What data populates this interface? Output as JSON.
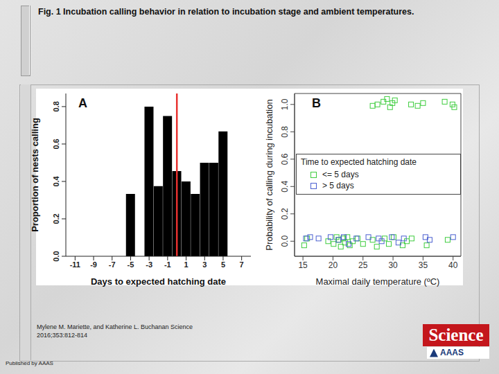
{
  "slide": {
    "title": "Fig. 1 Incubation calling behavior in relation to incubation stage and ambient temperatures.",
    "citation": [
      "Mylene M. Mariette, and Katherine L. Buchanan Science",
      "2016;353:812-814"
    ],
    "footer": "Published by AAAS",
    "logo": [
      "Science",
      "AAAS"
    ]
  },
  "chart_data": [
    {
      "type": "bar",
      "title": "A",
      "xlabel": "Days to expected hatching date",
      "ylabel": "Proportion of nests calling",
      "color": "#000000",
      "x": [
        -11,
        -10,
        -9,
        -8,
        -7,
        -6,
        -5,
        -4,
        -3,
        -2,
        -1,
        0,
        1,
        2,
        3,
        4,
        5,
        6,
        7
      ],
      "values": [
        0,
        0,
        0,
        0,
        0,
        0,
        0.333,
        0,
        0.8,
        0.375,
        0.75,
        0.455,
        0.4,
        0.333,
        0.5,
        0.5,
        0.667,
        0,
        0
      ],
      "xlim": [
        -12,
        8
      ],
      "xticks": [
        -11,
        -9,
        -7,
        -5,
        -3,
        -1,
        1,
        3,
        5,
        7
      ],
      "ylim": [
        0,
        0.87
      ],
      "yticks": [
        {
          "value": 0,
          "label": "0.0"
        },
        {
          "value": 0.2,
          "label": "0.2"
        },
        {
          "value": 0.4,
          "label": "0.4"
        },
        {
          "value": 0.6,
          "label": "0.6"
        },
        {
          "value": 0.8,
          "label": "0.8"
        }
      ],
      "reference_lines": [
        {
          "x": 0,
          "color": "#e8312f"
        }
      ]
    },
    {
      "type": "scatter",
      "title": "B",
      "xlabel": "Maximal daily temperature (ºC)",
      "ylabel": "Probability of calling during incubation",
      "xlim": [
        13.6,
        41.3
      ],
      "xticks": [
        15,
        20,
        25,
        30,
        35,
        40
      ],
      "ylim": [
        -0.11,
        1.08
      ],
      "yticks": [
        {
          "value": 0,
          "label": "0.0"
        },
        {
          "value": 0.2,
          "label": "0.2"
        },
        {
          "value": 0.4,
          "label": "0.4"
        },
        {
          "value": 0.6,
          "label": "0.6"
        },
        {
          "value": 0.8,
          "label": "0.8"
        },
        {
          "value": 1,
          "label": "1.0"
        }
      ],
      "legend": "right",
      "legend_title": "Time to expected hatching date",
      "marker": "square_open",
      "series": [
        {
          "name": "<= 5 days",
          "color": "#3dcc3d",
          "x": [
            26.6,
            27.4,
            28.4,
            29.0,
            29.5,
            29.9,
            30.3,
            33.0,
            34.1,
            35.0,
            38.6,
            39.9,
            40.2,
            15.2,
            15.7,
            19.2,
            20.1,
            20.6,
            21.0,
            21.3,
            21.7,
            22.0,
            22.4,
            22.8,
            23.3,
            24.1,
            25.0,
            26.6,
            27.3,
            28.6,
            29.3,
            30.1,
            31.6,
            32.3,
            33.1,
            35.6,
            39.1
          ],
          "values": [
            0.99,
            1.0,
            1.02,
            1.04,
            0.98,
            1.01,
            1.03,
            1.0,
            0.99,
            1.01,
            1.02,
            1.0,
            0.98,
            -0.03,
            0.02,
            0.0,
            -0.02,
            0.03,
            0.01,
            -0.04,
            0.02,
            -0.01,
            0.03,
            -0.03,
            0.0,
            0.02,
            -0.02,
            0.01,
            -0.04,
            0.02,
            -0.02,
            0.03,
            -0.03,
            0.0,
            0.02,
            -0.03,
            0.01
          ]
        },
        {
          "name": "> 5 days",
          "color": "#4a5fd0",
          "x": [
            15.5,
            16.2,
            17.6,
            19.6,
            20.9,
            21.8,
            22.6,
            23.9,
            25.9,
            27.6,
            28.1,
            29.8,
            30.9,
            31.8,
            35.4,
            36.1,
            40.0
          ],
          "values": [
            0.02,
            0.03,
            0.02,
            0.03,
            0.01,
            0.03,
            -0.02,
            0.02,
            0.03,
            0.02,
            0.0,
            0.03,
            -0.01,
            0.02,
            0.03,
            0.01,
            0.03
          ]
        }
      ]
    }
  ]
}
